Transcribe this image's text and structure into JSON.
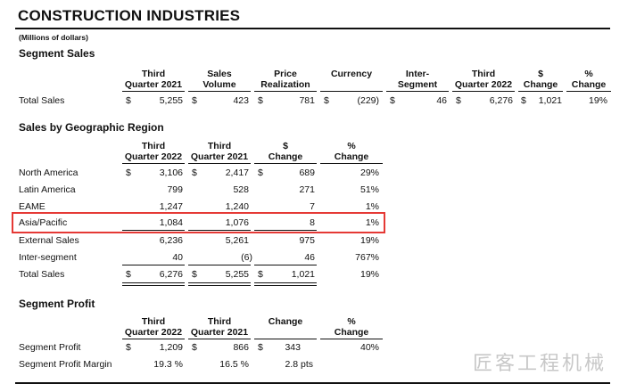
{
  "title": "CONSTRUCTION INDUSTRIES",
  "units": "(Millions of dollars)",
  "segment_sales": {
    "heading": "Segment Sales",
    "headers": [
      [
        "Third",
        "Quarter 2021"
      ],
      [
        "Sales",
        "Volume"
      ],
      [
        "Price",
        "Realization"
      ],
      [
        "",
        "Currency"
      ],
      [
        "Inter-",
        "Segment"
      ],
      [
        "Third",
        "Quarter 2022"
      ],
      [
        "$",
        "Change"
      ],
      [
        "%",
        "Change"
      ]
    ],
    "row": {
      "label": "Total Sales",
      "dollar": "$",
      "values": [
        "5,255",
        "423",
        "781",
        "(229)",
        "46",
        "6,276",
        "1,021",
        "19%"
      ]
    }
  },
  "geo": {
    "heading": "Sales by Geographic Region",
    "headers": [
      [
        "Third",
        "Quarter 2022"
      ],
      [
        "Third",
        "Quarter 2021"
      ],
      [
        "$",
        "Change"
      ],
      [
        "%",
        "Change"
      ]
    ],
    "dollar": "$",
    "rows": [
      {
        "label": "North America",
        "values": [
          "3,106",
          "2,417",
          "689",
          "29%"
        ]
      },
      {
        "label": "Latin America",
        "values": [
          "799",
          "528",
          "271",
          "51%"
        ]
      },
      {
        "label": "EAME",
        "values": [
          "1,247",
          "1,240",
          "7",
          "1%"
        ]
      },
      {
        "label": "Asia/Pacific",
        "values": [
          "1,084",
          "1,076",
          "8",
          "1%"
        ]
      },
      {
        "label": "External Sales",
        "values": [
          "6,236",
          "5,261",
          "975",
          "19%"
        ]
      },
      {
        "label": "Inter-segment",
        "values": [
          "40",
          "(6)",
          "46",
          "767%"
        ]
      },
      {
        "label": "Total Sales",
        "values": [
          "6,276",
          "5,255",
          "1,021",
          "19%"
        ]
      }
    ]
  },
  "profit": {
    "heading": "Segment Profit",
    "headers": [
      [
        "Third",
        "Quarter 2022"
      ],
      [
        "Third",
        "Quarter 2021"
      ],
      [
        "",
        "Change"
      ],
      [
        "%",
        "Change"
      ]
    ],
    "dollar": "$",
    "rows": [
      {
        "label": "Segment Profit",
        "values": [
          "1,209",
          "866",
          "343",
          "40%"
        ]
      },
      {
        "label": "Segment Profit Margin",
        "values": [
          "19.3 %",
          "16.5 %",
          "2.8 pts",
          ""
        ]
      }
    ]
  },
  "watermark": "匠客工程机械",
  "highlight_color": "#e53935"
}
